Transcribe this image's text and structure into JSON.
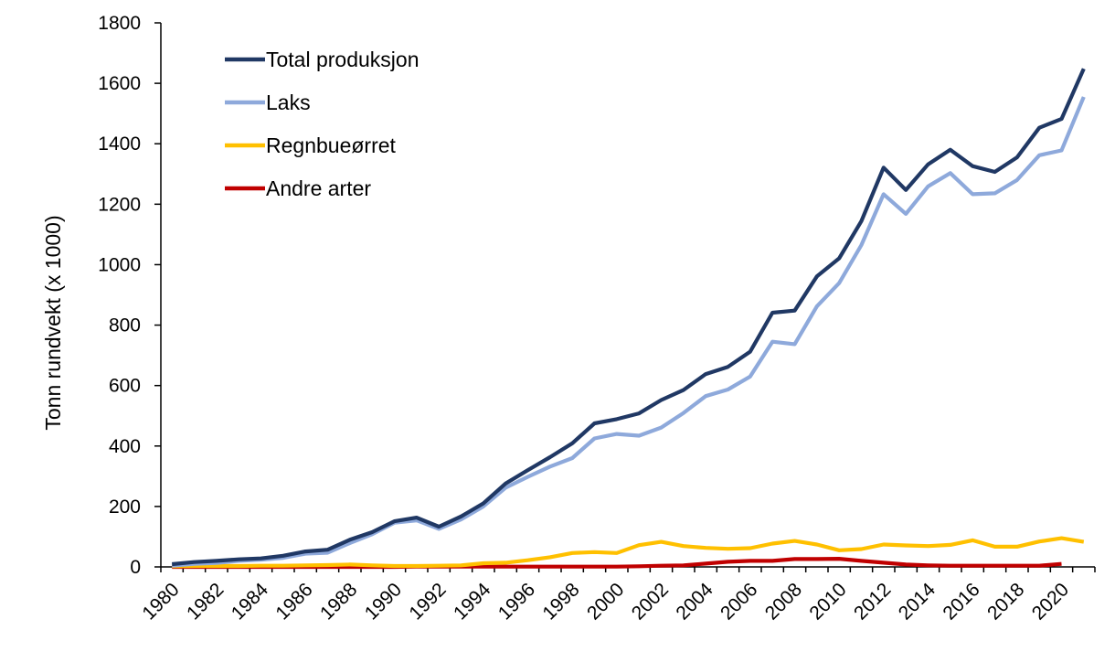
{
  "chart_data": {
    "type": "line",
    "title": "",
    "xlabel": "",
    "ylabel": "Tonn rundvekt (x 1000)",
    "ylim": [
      0,
      1800
    ],
    "yticks": [
      0,
      200,
      400,
      600,
      800,
      1000,
      1200,
      1400,
      1600,
      1800
    ],
    "yticks_labels": [
      "0",
      "200",
      "400",
      "600",
      "800",
      "1000",
      "1200",
      "1400",
      "1600",
      "1800"
    ],
    "x": [
      1980,
      1981,
      1982,
      1983,
      1984,
      1985,
      1986,
      1987,
      1988,
      1989,
      1990,
      1991,
      1992,
      1993,
      1994,
      1995,
      1996,
      1997,
      1998,
      1999,
      2000,
      2001,
      2002,
      2003,
      2004,
      2005,
      2006,
      2007,
      2008,
      2009,
      2010,
      2011,
      2012,
      2013,
      2014,
      2015,
      2016,
      2017,
      2018,
      2019,
      2020,
      2021
    ],
    "xtick_labels": [
      "1980",
      "1982",
      "1984",
      "1986",
      "1988",
      "1990",
      "1992",
      "1994",
      "1996",
      "1998",
      "2000",
      "2002",
      "2004",
      "2006",
      "2008",
      "2010",
      "2012",
      "2014",
      "2016",
      "2018",
      "2020"
    ],
    "grid": false,
    "legend_position": "top-left",
    "series": [
      {
        "name": "Total produksjon",
        "color": "#203864",
        "values": [
          9,
          16,
          20,
          25,
          28,
          37,
          51,
          57,
          90,
          115,
          151,
          163,
          133,
          167,
          210,
          276,
          320,
          363,
          409,
          475,
          489,
          508,
          552,
          585,
          638,
          662,
          712,
          841,
          848,
          961,
          1021,
          1144,
          1321,
          1247,
          1332,
          1380,
          1326,
          1307,
          1355,
          1453,
          1482,
          1648
        ]
      },
      {
        "name": "Laks",
        "color": "#8EA9DB",
        "values": [
          4,
          10,
          13,
          20,
          24,
          30,
          44,
          47,
          79,
          108,
          146,
          154,
          126,
          157,
          200,
          262,
          298,
          332,
          360,
          425,
          440,
          434,
          461,
          509,
          565,
          587,
          630,
          745,
          737,
          862,
          939,
          1065,
          1233,
          1168,
          1259,
          1303,
          1233,
          1236,
          1280,
          1362,
          1378,
          1555
        ]
      },
      {
        "name": "Regnbueørret",
        "color": "#FFC000",
        "values": [
          2,
          3,
          3,
          3,
          4,
          4,
          5,
          6,
          8,
          5,
          3,
          3,
          4,
          5,
          12,
          14,
          22,
          32,
          46,
          49,
          46,
          72,
          83,
          69,
          63,
          60,
          62,
          77,
          86,
          74,
          55,
          59,
          74,
          71,
          69,
          73,
          88,
          67,
          67,
          84,
          95,
          83
        ]
      },
      {
        "name": "Andre arter",
        "color": "#C00000",
        "values": [
          0,
          0,
          0,
          0,
          0,
          0,
          0,
          0,
          0,
          0,
          0,
          1,
          1,
          1,
          1,
          1,
          1,
          1,
          1,
          1,
          1,
          2,
          4,
          5,
          11,
          17,
          20,
          20,
          26,
          26,
          27,
          20,
          14,
          8,
          5,
          4,
          4,
          4,
          4,
          4,
          10,
          null
        ]
      }
    ]
  }
}
